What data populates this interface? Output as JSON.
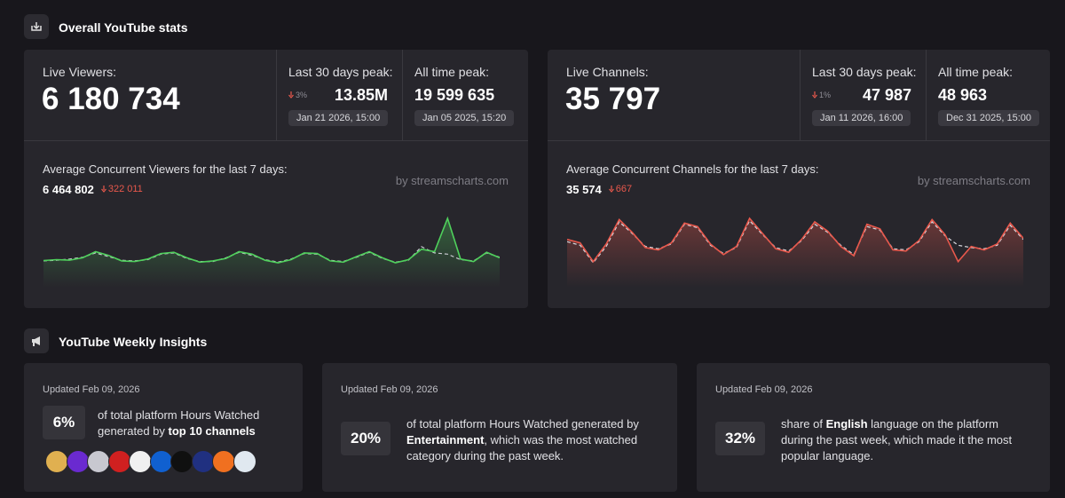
{
  "header": {
    "title": "Overall YouTube stats"
  },
  "panels": [
    {
      "label": "Live Viewers:",
      "value": "6 180 734",
      "peak30": {
        "label": "Last 30 days peak:",
        "change": "3%",
        "value": "13.85M",
        "date": "Jan 21 2026, 15:00"
      },
      "alltime": {
        "label": "All time peak:",
        "value": "19 599 635",
        "date": "Jan 05 2025, 15:20"
      },
      "chart": {
        "type": "line",
        "title": "Average Concurrent Viewers for the last 7 days:",
        "average": "6 464 802",
        "change": "322 011",
        "credit": "by streamscharts.com",
        "series": [
          {
            "color": "#4fd15c",
            "style": "solid",
            "values": [
              6180000,
              6250000,
              6210000,
              6400000,
              6900000,
              6600000,
              6150000,
              6100000,
              6300000,
              6750000,
              6850000,
              6400000,
              6050000,
              6150000,
              6350000,
              6900000,
              6700000,
              6200000,
              6000000,
              6250000,
              6800000,
              6750000,
              6150000,
              6050000,
              6500000,
              6900000,
              6400000,
              6000000,
              6250000,
              7100000,
              6900000,
              9600000,
              6300000,
              6100000,
              6850000,
              6400000
            ]
          },
          {
            "color": "#c8c8d0",
            "style": "dashed",
            "values": [
              6150000,
              6200000,
              6300000,
              6450000,
              6800000,
              6500000,
              6200000,
              6150000,
              6250000,
              6700000,
              6800000,
              6350000,
              6100000,
              6100000,
              6400000,
              6850000,
              6600000,
              6250000,
              6050000,
              6300000,
              6750000,
              6700000,
              6200000,
              6100000,
              6450000,
              6850000,
              6350000,
              6050000,
              6200000,
              7300000,
              6800000,
              6700000,
              6250000,
              6150000,
              6800000,
              6450000
            ]
          }
        ]
      }
    },
    {
      "label": "Live Channels:",
      "value": "35 797",
      "peak30": {
        "label": "Last 30 days peak:",
        "change": "1%",
        "value": "47 987",
        "date": "Jan 11 2026, 16:00"
      },
      "alltime": {
        "label": "All time peak:",
        "value": "48 963",
        "date": "Dec 31 2025, 15:00"
      },
      "chart": {
        "type": "line",
        "title": "Average Concurrent Channels for the last 7 days:",
        "average": "35 574",
        "change": "667",
        "credit": "by streamscharts.com",
        "series": [
          {
            "color": "#e8584c",
            "style": "solid",
            "values": [
              35900,
              35600,
              34000,
              35500,
              37600,
              36500,
              35200,
              35000,
              35600,
              37300,
              37000,
              35500,
              34600,
              35300,
              37700,
              36400,
              35100,
              34800,
              35900,
              37400,
              36600,
              35300,
              34500,
              37200,
              36800,
              35000,
              34900,
              35800,
              37600,
              36300,
              34000,
              35300,
              35000,
              35500,
              37300,
              36000
            ]
          },
          {
            "color": "#d8d8de",
            "style": "dashed",
            "values": [
              35700,
              35400,
              33900,
              35300,
              37400,
              36400,
              35300,
              35100,
              35500,
              37200,
              36900,
              35400,
              34700,
              35200,
              37500,
              36300,
              35200,
              34900,
              35800,
              37200,
              36500,
              35400,
              34600,
              37000,
              36700,
              35100,
              35000,
              35700,
              37400,
              36200,
              35400,
              35200,
              35100,
              35400,
              37100,
              35900
            ]
          }
        ]
      }
    }
  ],
  "insights": {
    "title": "YouTube Weekly Insights",
    "cards": [
      {
        "updated": "Updated Feb 09, 2026",
        "stat": "6%",
        "text_parts": [
          {
            "text": "of total platform Hours Watched generated by "
          },
          {
            "text": "top 10 channels",
            "bold": true
          }
        ]
      },
      {
        "updated": "Updated Feb 09, 2026",
        "stat": "20%",
        "text_parts": [
          {
            "text": "of total platform Hours Watched generated by "
          },
          {
            "text": "Entertainment",
            "bold": true
          },
          {
            "text": ", which was the most watched category during the past week."
          }
        ]
      },
      {
        "updated": "Updated Feb 09, 2026",
        "stat": "32%",
        "text_parts": [
          {
            "text": "share of "
          },
          {
            "text": "English",
            "bold": true
          },
          {
            "text": " language on the platform during the past week, which made it the most popular language."
          }
        ]
      }
    ]
  }
}
